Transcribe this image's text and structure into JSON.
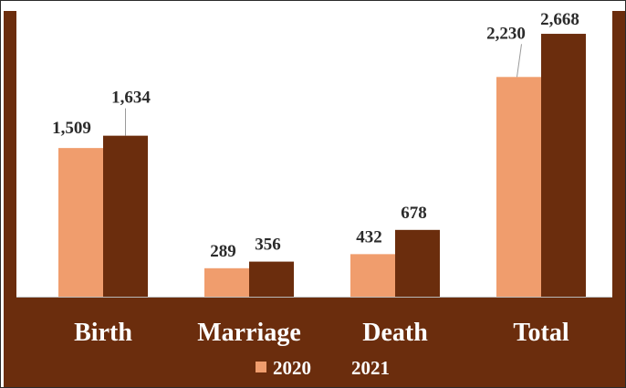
{
  "chart_data": {
    "type": "bar",
    "categories": [
      "Birth",
      "Marriage",
      "Death",
      "Total"
    ],
    "series": [
      {
        "name": "2020",
        "values": [
          1509,
          289,
          432,
          2230
        ],
        "labels": [
          "1,509",
          "289",
          "432",
          "2,230"
        ],
        "color": "#f09d6d"
      },
      {
        "name": "2021",
        "values": [
          1634,
          356,
          678,
          2668
        ],
        "labels": [
          "1,634",
          "356",
          "678",
          "2,668"
        ],
        "color": "#6b2d0d"
      }
    ],
    "ylim": [
      0,
      2900
    ],
    "grid": false,
    "legend": "bottom",
    "colors": {
      "background": "#6b2d0d",
      "plot_area": "#ffffff",
      "label_text": "#2b2b2b",
      "category_text": "#ffffff"
    }
  }
}
